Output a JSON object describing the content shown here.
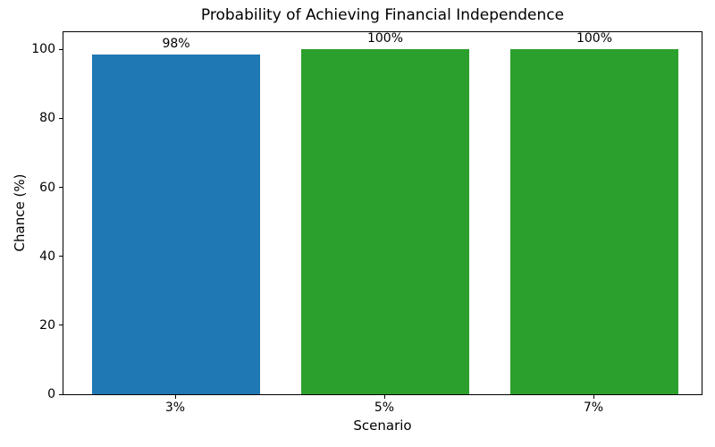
{
  "chart_data": {
    "type": "bar",
    "title": "Probability of Achieving Financial Independence",
    "xlabel": "Scenario",
    "ylabel": "Chance (%)",
    "categories": [
      "3%",
      "5%",
      "7%"
    ],
    "values": [
      98.4,
      100,
      100
    ],
    "bar_labels": [
      "98%",
      "100%",
      "100%"
    ],
    "bar_colors": [
      "#1f77b4",
      "#2ca02c",
      "#2ca02c"
    ],
    "ylim": [
      0,
      105
    ],
    "yticks": [
      0,
      20,
      40,
      60,
      80,
      100
    ],
    "grid": false,
    "legend": "none",
    "background_color": "#ffffff",
    "spine_color": "#000000"
  }
}
